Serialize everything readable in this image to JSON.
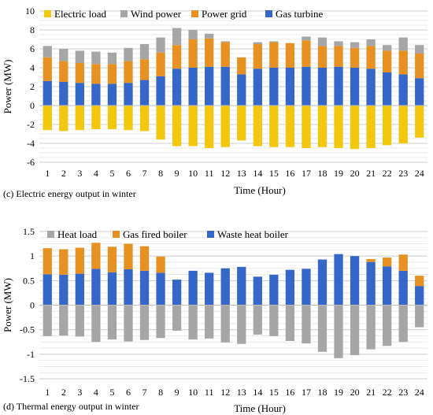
{
  "chart_data": [
    {
      "type": "bar",
      "stacked": true,
      "caption": "(c) Electric energy output in winter",
      "xlabel": "Time (Hour)",
      "ylabel": "Power (MW)",
      "ylim": [
        -6,
        10
      ],
      "yticks": [
        -6,
        -4,
        -2,
        0,
        2,
        4,
        6,
        8,
        10
      ],
      "grid": true,
      "legend_position": "top-left",
      "categories": [
        "1",
        "2",
        "3",
        "4",
        "5",
        "6",
        "7",
        "8",
        "9",
        "10",
        "11",
        "12",
        "13",
        "14",
        "15",
        "16",
        "17",
        "18",
        "19",
        "20",
        "21",
        "22",
        "23",
        "24"
      ],
      "series": [
        {
          "name": "Electric load",
          "color": "#f2c80f",
          "values": [
            -2.6,
            -2.7,
            -2.6,
            -2.5,
            -2.5,
            -2.6,
            -2.7,
            -3.6,
            -4.3,
            -4.3,
            -4.5,
            -4.4,
            -3.7,
            -4.3,
            -4.4,
            -4.4,
            -4.5,
            -4.4,
            -4.5,
            -4.6,
            -4.5,
            -4.2,
            -4.0,
            -3.4
          ]
        },
        {
          "name": "Gas turbine",
          "color": "#3567c8",
          "values": [
            2.6,
            2.5,
            2.4,
            2.3,
            2.3,
            2.4,
            2.7,
            3.1,
            3.9,
            4.0,
            4.1,
            4.1,
            3.3,
            3.9,
            4.0,
            4.0,
            4.1,
            4.0,
            4.1,
            4.0,
            3.9,
            3.5,
            3.3,
            2.9
          ]
        },
        {
          "name": "Power grid",
          "color": "#e69122",
          "values": [
            2.5,
            2.2,
            2.1,
            2.1,
            2.1,
            2.3,
            2.2,
            2.5,
            2.5,
            3.0,
            3.0,
            2.6,
            1.8,
            2.6,
            2.7,
            2.6,
            2.8,
            2.3,
            2.2,
            2.1,
            2.4,
            2.3,
            2.5,
            2.6
          ]
        },
        {
          "name": "Wind power",
          "color": "#a6a6a6",
          "values": [
            1.2,
            1.3,
            1.3,
            1.3,
            1.2,
            1.4,
            1.6,
            1.6,
            1.8,
            1.0,
            0.5,
            0.1,
            0.0,
            0.2,
            0.1,
            0.0,
            0.4,
            0.9,
            0.5,
            0.6,
            0.7,
            0.6,
            1.4,
            0.9
          ]
        }
      ],
      "legend_order": [
        "Electric load",
        "Wind power",
        "Power grid",
        "Gas turbine"
      ]
    },
    {
      "type": "bar",
      "stacked": true,
      "caption": "(d) Thermal energy output in winter",
      "xlabel": "Time (Hour)",
      "ylabel": "Power (MW)",
      "ylim": [
        -1.5,
        1.5
      ],
      "yticks": [
        -1.5,
        -1,
        -0.5,
        0,
        0.5,
        1,
        1.5
      ],
      "grid": true,
      "legend_position": "top-left",
      "categories": [
        "1",
        "2",
        "3",
        "4",
        "5",
        "6",
        "7",
        "8",
        "9",
        "10",
        "11",
        "12",
        "13",
        "14",
        "15",
        "16",
        "17",
        "18",
        "19",
        "20",
        "21",
        "22",
        "23",
        "24"
      ],
      "series": [
        {
          "name": "Heat load",
          "color": "#a6a6a6",
          "values": [
            -0.63,
            -0.62,
            -0.64,
            -0.75,
            -0.7,
            -0.74,
            -0.71,
            -0.67,
            -0.52,
            -0.7,
            -0.68,
            -0.76,
            -0.79,
            -0.6,
            -0.63,
            -0.73,
            -0.78,
            -0.95,
            -1.08,
            -1.02,
            -0.9,
            -0.83,
            -0.75,
            -0.45
          ]
        },
        {
          "name": "Waste heat boiler",
          "color": "#3567c8",
          "values": [
            0.63,
            0.62,
            0.64,
            0.74,
            0.67,
            0.73,
            0.7,
            0.66,
            0.52,
            0.7,
            0.66,
            0.75,
            0.78,
            0.58,
            0.62,
            0.72,
            0.74,
            0.93,
            1.04,
            1.0,
            0.88,
            0.79,
            0.7,
            0.39
          ]
        },
        {
          "name": "Gas fired boiler",
          "color": "#e69122",
          "values": [
            0.53,
            0.52,
            0.53,
            0.53,
            0.52,
            0.52,
            0.5,
            0.33,
            0.0,
            0.0,
            0.0,
            0.0,
            0.0,
            0.0,
            0.0,
            0.0,
            0.0,
            0.0,
            0.0,
            0.0,
            0.06,
            0.18,
            0.33,
            0.21
          ]
        }
      ],
      "legend_order": [
        "Heat load",
        "Gas fired boiler",
        "Waste heat boiler"
      ]
    }
  ]
}
